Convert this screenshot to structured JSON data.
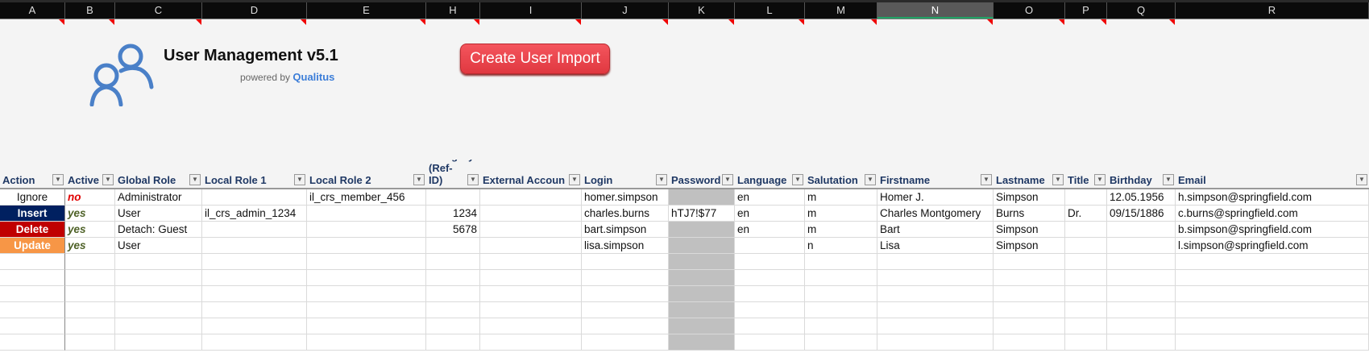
{
  "columns": [
    "A",
    "B",
    "C",
    "D",
    "E",
    "H",
    "I",
    "J",
    "K",
    "L",
    "M",
    "N",
    "O",
    "P",
    "Q",
    "R"
  ],
  "selected_column": "N",
  "banner": {
    "title": "User Management v5.1",
    "powered_by": "powered by",
    "brand": "Qualitus",
    "button": "Create User Import"
  },
  "headers": [
    "Action",
    "Active",
    "Global Role",
    "Local Role 1",
    "Local Role 2",
    "Category (Ref-ID)",
    "External Accoun",
    "Login",
    "Password",
    "Language",
    "Salutation",
    "Firstname",
    "Lastname",
    "Title",
    "Birthday",
    "Email"
  ],
  "rows": [
    {
      "action": "Ignore",
      "active": "no",
      "global_role": "Administrator",
      "local_role_1": "",
      "local_role_2": "il_crs_member_456",
      "category": "",
      "external": "",
      "login": "homer.simpson",
      "password": "",
      "language": "en",
      "salutation": "m",
      "firstname": "Homer J.",
      "lastname": "Simpson",
      "title": "",
      "birthday": "12.05.1956",
      "email": "h.simpson@springfield.com"
    },
    {
      "action": "Insert",
      "active": "yes",
      "global_role": "User",
      "local_role_1": "il_crs_admin_1234",
      "local_role_2": "",
      "category": "1234",
      "external": "",
      "login": "charles.burns",
      "password": "hTJ7!$77",
      "language": "en",
      "salutation": "m",
      "firstname": "Charles Montgomery",
      "lastname": "Burns",
      "title": "Dr.",
      "birthday": "09/15/1886",
      "email": "c.burns@springfield.com"
    },
    {
      "action": "Delete",
      "active": "yes",
      "global_role": "Detach: Guest",
      "local_role_1": "",
      "local_role_2": "",
      "category": "5678",
      "external": "",
      "login": "bart.simpson",
      "password": "",
      "language": "en",
      "salutation": "m",
      "firstname": "Bart",
      "lastname": "Simpson",
      "title": "",
      "birthday": "",
      "email": "b.simpson@springfield.com"
    },
    {
      "action": "Update",
      "active": "yes",
      "global_role": "User",
      "local_role_1": "",
      "local_role_2": "",
      "category": "",
      "external": "",
      "login": "lisa.simpson",
      "password": "",
      "language": "",
      "salutation": "n",
      "firstname": "Lisa",
      "lastname": "Simpson",
      "title": "",
      "birthday": "",
      "email": "l.simpson@springfield.com"
    }
  ],
  "colors": {
    "Ignore": "#ffffff",
    "Insert": "#002060",
    "Delete": "#c00000",
    "Update": "#f79646",
    "no": "#e00000",
    "yes": "#4f6228",
    "header_text": "#1f3864"
  }
}
